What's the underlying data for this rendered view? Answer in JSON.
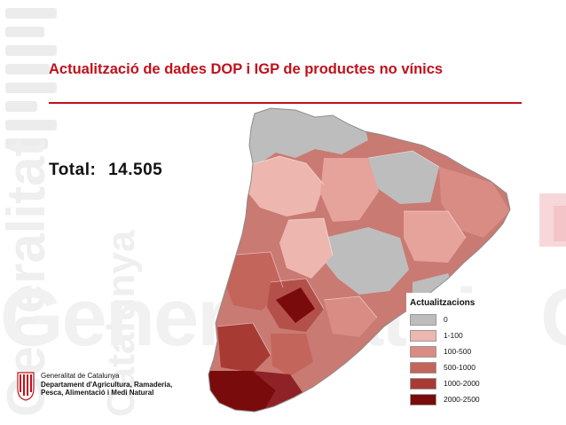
{
  "slide": {
    "title": "Actualització de dades DOP i IGP de productes no vínics",
    "total_label": "Total:",
    "total_value": "14.505"
  },
  "watermark": {
    "horizontal_text": "Generalitat de Catalu",
    "vertical_text_1": "Generalitat",
    "vertical_text_2": "Catalunya"
  },
  "legend": {
    "title": "Actualitzacions",
    "items": [
      {
        "label": "0",
        "color": "#bdbdbd"
      },
      {
        "label": "1-100",
        "color": "#edb7b0"
      },
      {
        "label": "100-500",
        "color": "#d98c83"
      },
      {
        "label": "500-1000",
        "color": "#c3655b"
      },
      {
        "label": "1000-2000",
        "color": "#a83a34"
      },
      {
        "label": "2000-2500",
        "color": "#7a0b0d"
      }
    ]
  },
  "logo": {
    "line1": "Generalitat de Catalunya",
    "line2": "Departament d'Agricultura, Ramaderia,",
    "line3": "Pesca, Alimentació i Medi Natural"
  },
  "colors": {
    "accent": "#c0111b",
    "text": "#111111"
  }
}
